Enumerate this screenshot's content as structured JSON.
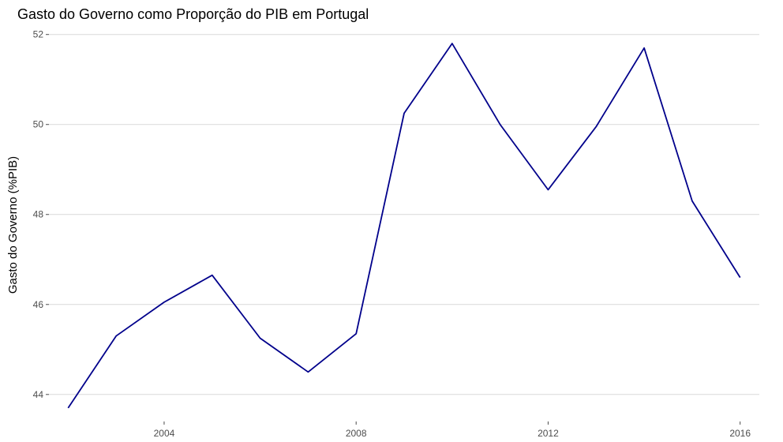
{
  "chart_data": {
    "type": "line",
    "title": "Gasto do Governo como Proporção do PIB em Portugal",
    "xlabel": "",
    "ylabel": "Gasto do Governo (%PIB)",
    "x": [
      2002,
      2003,
      2004,
      2005,
      2006,
      2007,
      2008,
      2009,
      2010,
      2011,
      2012,
      2013,
      2014,
      2015,
      2016
    ],
    "series": [
      {
        "values": [
          43.7,
          45.3,
          46.05,
          46.65,
          45.25,
          44.5,
          45.35,
          50.25,
          51.8,
          50.0,
          48.55,
          49.95,
          51.7,
          48.3,
          46.6
        ]
      }
    ],
    "xticks": [
      "2004",
      "2008",
      "2012",
      "2016"
    ],
    "yticks": [
      "44",
      "46",
      "48",
      "50",
      "52"
    ],
    "xlim": [
      2001.6,
      2016.4
    ],
    "ylim": [
      43.4,
      52.1
    ],
    "grid": true,
    "line_color": "#00008b"
  }
}
